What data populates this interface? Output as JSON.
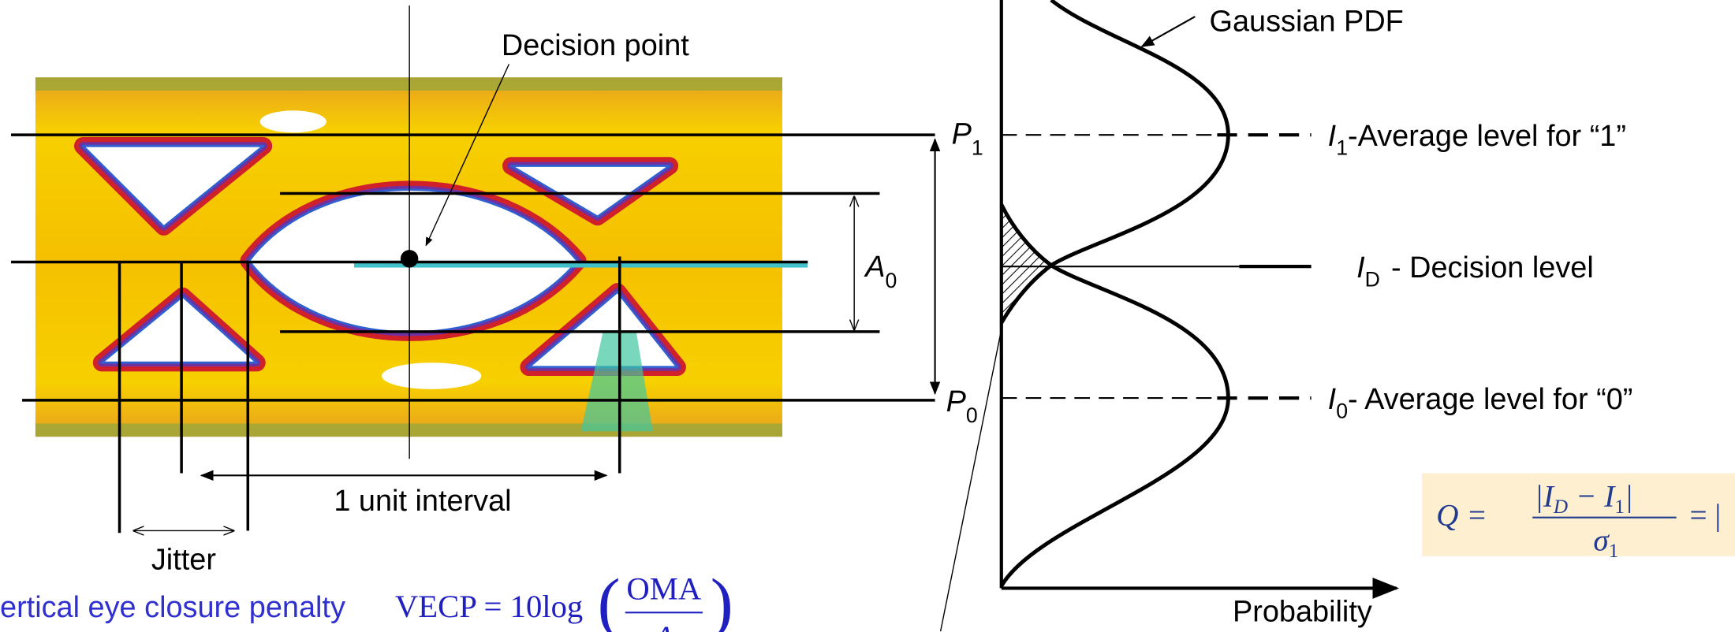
{
  "eye_diagram": {
    "decision_point": "Decision point",
    "p1": {
      "symbol": "P",
      "subscript": "1"
    },
    "p0": {
      "symbol": "P",
      "subscript": "0"
    },
    "a0": {
      "symbol": "A",
      "subscript": "0"
    },
    "unit_interval": "1 unit interval",
    "jitter": "Jitter",
    "vecp_label": "ertical eye closure penalty",
    "vecp_formula": {
      "lhs": "VECP = 10log",
      "numerator": "OMA",
      "denominator": "A"
    }
  },
  "pdf_panel": {
    "gaussian": "Gaussian PDF",
    "i1": {
      "symbol": "I",
      "subscript": "1",
      "text": "-Average level for “1”"
    },
    "id": {
      "symbol": "I",
      "subscript": "D",
      "text": "- Decision level"
    },
    "i0": {
      "symbol": "I",
      "subscript": "0",
      "text": "- Average level for “0”"
    },
    "x_axis": "Probability",
    "q_formula": {
      "lhs": "Q =",
      "num_a": "|I",
      "num_a_sub": "D",
      "num_b": " − I",
      "num_b_sub": "1",
      "num_c": "|",
      "den": "σ",
      "den_sub": "1",
      "rhs": "= |"
    }
  }
}
